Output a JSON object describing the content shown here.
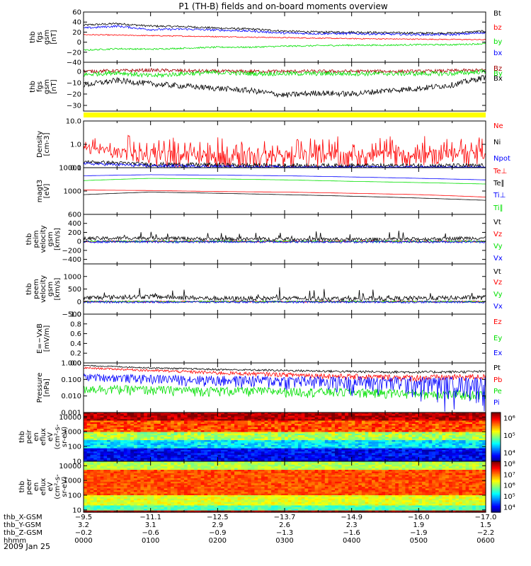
{
  "title": "P1 (TH-B) fields and on-board moments overview",
  "date_label": "2009 Jan 25",
  "colors": {
    "black": "#000000",
    "red": "#ff0000",
    "green": "#00e000",
    "blue": "#0000ff",
    "darkred": "#a00000",
    "yellow": "#ffff00"
  },
  "chart_data": [
    {
      "type": "line",
      "id": "fgs-total",
      "ylabel": [
        "thb",
        "fgs",
        "gsm",
        "[nT]"
      ],
      "ylim": [
        -40,
        60
      ],
      "yscale": "linear",
      "ticks": [
        "60",
        "40",
        "20",
        "0",
        "−20",
        "−40"
      ],
      "tick_values": [
        60,
        40,
        20,
        0,
        -20,
        -40
      ],
      "xlim": [
        0,
        6
      ],
      "x_unit": "hours UT",
      "series": [
        {
          "name": "Bt",
          "color": "#000000",
          "x": [
            0,
            0.5,
            1,
            1.5,
            2,
            2.5,
            3,
            3.5,
            4,
            4.5,
            5,
            5.5,
            6
          ],
          "y": [
            34,
            37,
            32,
            31,
            28,
            26,
            22,
            20,
            20,
            19,
            18,
            18,
            22
          ],
          "noise": 2
        },
        {
          "name": "bz",
          "color": "#ff0000",
          "x": [
            0,
            1,
            2,
            3,
            4,
            5,
            6
          ],
          "y": [
            15,
            13,
            11,
            9,
            7,
            6,
            5
          ],
          "noise": 1
        },
        {
          "name": "by",
          "color": "#00e000",
          "x": [
            0,
            0.5,
            1,
            1.5,
            2,
            2.5,
            3,
            3.5,
            4,
            4.5,
            5,
            5.5,
            6
          ],
          "y": [
            -16,
            -13,
            -14,
            -12,
            -10,
            -10,
            -8,
            -7,
            -6,
            -6,
            -5,
            -5,
            -3
          ],
          "noise": 1.5
        },
        {
          "name": "bx",
          "color": "#0000ff",
          "x": [
            0,
            0.5,
            1,
            1.5,
            2,
            2.5,
            3,
            3.5,
            4,
            4.5,
            5,
            5.5,
            6
          ],
          "y": [
            28,
            32,
            25,
            26,
            24,
            22,
            18,
            17,
            17,
            16,
            15,
            15,
            19
          ],
          "noise": 2
        }
      ]
    },
    {
      "type": "line",
      "id": "fgs-components",
      "ylabel": [
        "thb",
        "fgs",
        "gsm",
        "[nT]"
      ],
      "ylim": [
        -35,
        8
      ],
      "yscale": "linear",
      "ticks": [
        "0",
        "−10",
        "−20",
        "−30"
      ],
      "tick_values": [
        0,
        -10,
        -20,
        -30
      ],
      "xlim": [
        0,
        6
      ],
      "series": [
        {
          "name": "Bz",
          "color": "#a00000",
          "x": [
            0,
            1,
            2,
            3,
            4,
            5,
            6
          ],
          "y": [
            0,
            1,
            0,
            0,
            0,
            0,
            1
          ],
          "noise": 1.5
        },
        {
          "name": "By",
          "color": "#00e000",
          "x": [
            0,
            0.5,
            1,
            1.5,
            2,
            2.5,
            3,
            3.5,
            4,
            4.5,
            5,
            5.5,
            6
          ],
          "y": [
            -3,
            -1,
            -4,
            -2,
            -1,
            -2,
            -2,
            -2,
            -2,
            -2,
            -2,
            -2,
            0
          ],
          "noise": 2
        },
        {
          "name": "Bx",
          "color": "#000000",
          "x": [
            0,
            0.5,
            1,
            1.5,
            2,
            2.5,
            3,
            3.5,
            4,
            4.5,
            5,
            5.5,
            6
          ],
          "y": [
            -12,
            -8,
            -11,
            -13,
            -15,
            -17,
            -21,
            -19,
            -20,
            -17,
            -15,
            -12,
            -5
          ],
          "noise": 2.5
        }
      ]
    },
    {
      "type": "line",
      "id": "density",
      "ylabel": [
        "Density",
        "[cm-3]"
      ],
      "ylim": [
        0.1,
        10
      ],
      "yscale": "log",
      "ticks": [
        "10.0",
        "1.0",
        "0.1"
      ],
      "tick_values": [
        10,
        1,
        0.1
      ],
      "xlim": [
        0,
        6
      ],
      "series": [
        {
          "name": "Ne",
          "color": "#ff0000",
          "x": [
            0,
            0.5,
            1,
            1.5,
            2,
            2.5,
            3,
            3.5,
            4,
            4.5,
            5,
            5.5,
            6
          ],
          "y": [
            0.6,
            0.5,
            0.35,
            0.3,
            0.3,
            0.3,
            0.3,
            0.3,
            0.3,
            0.35,
            0.35,
            0.4,
            0.3
          ],
          "noise": 0.25,
          "spiky": true
        },
        {
          "name": "Ni",
          "color": "#000000",
          "x": [
            0,
            1,
            2,
            3,
            4,
            5,
            6
          ],
          "y": [
            0.18,
            0.14,
            0.13,
            0.12,
            0.12,
            0.12,
            0.12
          ],
          "noise": 0.03
        },
        {
          "name": "Npot",
          "color": "#0000ff",
          "x": [
            0,
            1,
            2,
            3,
            4,
            5,
            6
          ],
          "y": [
            0.15,
            0.12,
            0.11,
            0.1,
            0.1,
            0.1,
            0.1
          ],
          "noise": 0.02
        }
      ]
    },
    {
      "type": "line",
      "id": "temperature",
      "ylabel": [
        "magt3",
        "[eV]"
      ],
      "ylim": [
        100,
        10000
      ],
      "yscale": "log",
      "ticks": [
        "10000",
        "1000"
      ],
      "tick_values": [
        10000,
        1000
      ],
      "xlim": [
        0,
        6
      ],
      "series": [
        {
          "name": "Te⊥",
          "color": "#ff0000",
          "x": [
            0,
            1,
            2,
            3,
            4,
            5,
            6
          ],
          "y": [
            1100,
            1050,
            950,
            900,
            800,
            700,
            550
          ],
          "noise": 0.12
        },
        {
          "name": "Te∥",
          "color": "#000000",
          "x": [
            0,
            1,
            2,
            3,
            4,
            5,
            6
          ],
          "y": [
            700,
            900,
            800,
            700,
            600,
            500,
            400
          ],
          "noise": 0.15
        },
        {
          "name": "Ti⊥",
          "color": "#0000ff",
          "x": [
            0,
            1,
            2,
            3,
            4,
            5,
            6
          ],
          "y": [
            4500,
            5000,
            4800,
            4500,
            4000,
            3500,
            3000
          ],
          "noise": 0.08
        },
        {
          "name": "Ti∥",
          "color": "#00e000",
          "x": [
            0,
            1,
            2,
            3,
            4,
            5,
            6
          ],
          "y": [
            2800,
            3500,
            3300,
            3000,
            2600,
            2300,
            2000
          ],
          "noise": 0.08
        }
      ]
    },
    {
      "type": "line",
      "id": "peim-velocity",
      "ylabel": [
        "thb",
        "peim",
        "velocity",
        "gsm",
        "[km/s]"
      ],
      "ylim": [
        -500,
        600
      ],
      "yscale": "linear",
      "ticks": [
        "600",
        "400",
        "200",
        "0",
        "−200",
        "−400"
      ],
      "tick_values": [
        600,
        400,
        200,
        0,
        -200,
        -400
      ],
      "xlim": [
        0,
        6
      ],
      "series": [
        {
          "name": "Vt",
          "color": "#000000",
          "x": [
            0,
            1,
            2,
            3,
            4,
            5,
            6
          ],
          "y": [
            60,
            80,
            50,
            50,
            40,
            50,
            80
          ],
          "noise": 40,
          "spiky": true
        },
        {
          "name": "Vz",
          "color": "#ff0000",
          "x": [
            0,
            6
          ],
          "y": [
            0,
            0
          ],
          "noise": 20
        },
        {
          "name": "Vy",
          "color": "#00e000",
          "x": [
            0,
            6
          ],
          "y": [
            0,
            0
          ],
          "noise": 20
        },
        {
          "name": "Vx",
          "color": "#0000ff",
          "x": [
            0,
            6
          ],
          "y": [
            -10,
            -10
          ],
          "noise": 25
        }
      ]
    },
    {
      "type": "line",
      "id": "peem-velocity",
      "ylabel": [
        "thb",
        "peem",
        "velocity",
        "gsm",
        "[km/s]"
      ],
      "ylim": [
        -500,
        1500
      ],
      "yscale": "linear",
      "ticks": [
        "1000",
        "500",
        "0",
        "−500"
      ],
      "tick_values": [
        1000,
        500,
        0,
        -500
      ],
      "xlim": [
        0,
        6
      ],
      "series": [
        {
          "name": "Vt",
          "color": "#000000",
          "x": [
            0,
            1,
            2,
            3,
            4,
            5,
            6
          ],
          "y": [
            150,
            200,
            120,
            130,
            110,
            130,
            160
          ],
          "noise": 90,
          "spiky": true
        },
        {
          "name": "Vz",
          "color": "#ff0000",
          "x": [
            0,
            6
          ],
          "y": [
            0,
            0
          ],
          "noise": 30
        },
        {
          "name": "Vy",
          "color": "#00e000",
          "x": [
            0,
            6
          ],
          "y": [
            0,
            0
          ],
          "noise": 30
        },
        {
          "name": "Vx",
          "color": "#0000ff",
          "x": [
            0,
            6
          ],
          "y": [
            -20,
            -20
          ],
          "noise": 40
        }
      ]
    },
    {
      "type": "line",
      "id": "efield",
      "ylabel": [
        "E=−VxB",
        "[mV/m]"
      ],
      "ylim": [
        0,
        1
      ],
      "yscale": "linear",
      "ticks": [
        "1.0",
        "0.8",
        "0.6",
        "0.4",
        "0.2",
        "0.0"
      ],
      "tick_values": [
        1.0,
        0.8,
        0.6,
        0.4,
        0.2,
        0.0
      ],
      "xlim": [
        0,
        6
      ],
      "series": [
        {
          "name": "Ez",
          "color": "#ff0000",
          "x": [],
          "y": []
        },
        {
          "name": "Ey",
          "color": "#00e000",
          "x": [],
          "y": []
        },
        {
          "name": "Ex",
          "color": "#0000ff",
          "x": [],
          "y": []
        }
      ]
    },
    {
      "type": "line",
      "id": "pressure",
      "ylabel": [
        "Pressure",
        "[nPa]"
      ],
      "ylim": [
        0.001,
        1
      ],
      "yscale": "log",
      "ticks": [
        "1.000",
        "0.100",
        "0.010",
        "0.001"
      ],
      "tick_values": [
        1,
        0.1,
        0.01,
        0.001
      ],
      "xlim": [
        0,
        6
      ],
      "series": [
        {
          "name": "Pt",
          "color": "#000000",
          "x": [
            0,
            1,
            2,
            3,
            4,
            5,
            6
          ],
          "y": [
            0.7,
            0.5,
            0.4,
            0.35,
            0.3,
            0.28,
            0.3
          ],
          "noise": 0.05
        },
        {
          "name": "Pb",
          "color": "#ff0000",
          "x": [
            0,
            1,
            2,
            3,
            4,
            5,
            6
          ],
          "y": [
            0.5,
            0.35,
            0.25,
            0.2,
            0.15,
            0.13,
            0.15
          ],
          "noise": 0.06
        },
        {
          "name": "Pe",
          "color": "#00e000",
          "x": [
            0,
            1,
            2,
            3,
            4,
            5,
            6
          ],
          "y": [
            0.03,
            0.025,
            0.022,
            0.02,
            0.018,
            0.015,
            0.012
          ],
          "noise": 0.06
        },
        {
          "name": "Pi",
          "color": "#0000ff",
          "x": [
            0,
            1,
            2,
            3,
            4,
            5,
            6
          ],
          "y": [
            0.15,
            0.12,
            0.1,
            0.09,
            0.08,
            0.07,
            0.07
          ],
          "noise": 0.07
        }
      ]
    },
    {
      "type": "heatmap",
      "id": "peir-spectrogram",
      "ylabel": [
        "thb",
        "peir",
        "en",
        "eflux",
        "eV",
        "(cm²-s-",
        "sr-eV)"
      ],
      "ylim": [
        10,
        20000
      ],
      "yscale": "log",
      "ticks": [
        "10000",
        "1000",
        "100",
        "10"
      ],
      "tick_values": [
        10000,
        1000,
        100,
        10
      ],
      "xlim": [
        0,
        6
      ],
      "colorbar": {
        "labels": [
          "10⁶",
          "10⁵",
          "10⁴"
        ],
        "values": [
          6,
          5,
          4
        ],
        "range": [
          3.5,
          6.3
        ]
      }
    },
    {
      "type": "heatmap",
      "id": "peer-spectrogram",
      "ylabel": [
        "thb",
        "peer",
        "en",
        "eflux",
        "eV",
        "(cm²-s-",
        "sr-eV)"
      ],
      "ylim": [
        7,
        20000
      ],
      "yscale": "log",
      "ticks": [
        "10000",
        "1000",
        "100",
        "10"
      ],
      "tick_values": [
        10000,
        1000,
        100,
        10
      ],
      "xlim": [
        0,
        6
      ],
      "colorbar": {
        "labels": [
          "10⁸",
          "10⁷",
          "10⁶",
          "10⁵",
          "10⁴"
        ],
        "values": [
          8,
          7,
          6,
          5,
          4
        ],
        "range": [
          3.5,
          8.2
        ]
      }
    }
  ],
  "bottom_axis": {
    "row_labels": [
      "thb_X-GSM",
      "thb_Y-GSM",
      "thb_Z-GSM",
      "hhmm"
    ],
    "tick_hours": [
      0,
      1,
      2,
      3,
      4,
      5,
      6
    ],
    "columns": [
      [
        "−9.5",
        "3.2",
        "−0.2",
        "0000"
      ],
      [
        "−11.1",
        "3.1",
        "−0.6",
        "0100"
      ],
      [
        "−12.5",
        "2.9",
        "−0.9",
        "0200"
      ],
      [
        "−13.7",
        "2.6",
        "−1.3",
        "0300"
      ],
      [
        "−14.9",
        "2.3",
        "−1.6",
        "0400"
      ],
      [
        "−16.0",
        "1.9",
        "−1.9",
        "0500"
      ],
      [
        "−17.0",
        "1.5",
        "−2.2",
        "0600"
      ]
    ]
  }
}
